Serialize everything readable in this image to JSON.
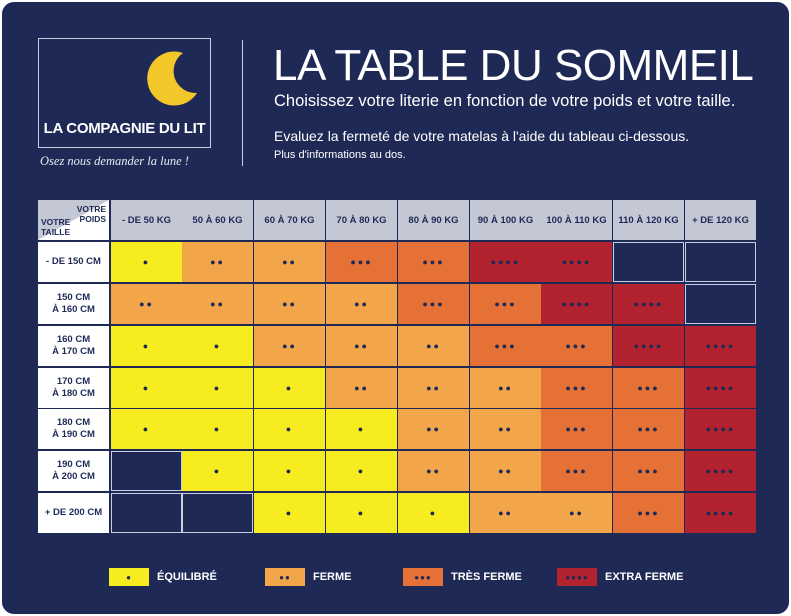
{
  "brand": {
    "name": "LA COMPAGNIE DU LIT",
    "tagline": "Osez nous demander la lune !"
  },
  "header": {
    "title": "LA TABLE DU SOMMEIL",
    "subtitle": "Choisissez votre literie en fonction de votre poids et votre taille.",
    "instruction": "Evaluez la fermeté de votre matelas à l'aide du tableau ci-dessous.",
    "more_info": "Plus d'informations au dos."
  },
  "grid": {
    "corner_weight": "VOTRE\nPOIDS",
    "corner_height": "VOTRE\nTAILLE",
    "columns": [
      "- DE 50 KG",
      "50 À 60 KG",
      "60 À 70 KG",
      "70 À 80 KG",
      "80 À 90 KG",
      "90 À 100 KG",
      "100 À 110 KG",
      "110 À 120 KG",
      "+ DE 120 KG"
    ],
    "rows": [
      {
        "label": "- DE 150 CM",
        "levels": [
          1,
          2,
          2,
          3,
          3,
          4,
          4,
          0,
          0
        ]
      },
      {
        "label": "150 CM\nÀ 160 CM",
        "levels": [
          2,
          2,
          2,
          2,
          3,
          3,
          4,
          4,
          0
        ]
      },
      {
        "label": "160 CM\nÀ 170 CM",
        "levels": [
          1,
          1,
          2,
          2,
          2,
          3,
          3,
          4,
          4
        ]
      },
      {
        "label": "170 CM\nÀ 180 CM",
        "levels": [
          1,
          1,
          1,
          2,
          2,
          2,
          3,
          3,
          4
        ]
      },
      {
        "label": "180 CM\nÀ 190 CM",
        "levels": [
          1,
          1,
          1,
          1,
          2,
          2,
          3,
          3,
          4
        ]
      },
      {
        "label": "190 CM\nÀ 200 CM",
        "levels": [
          0,
          1,
          1,
          1,
          2,
          2,
          3,
          3,
          4
        ]
      },
      {
        "label": "+ DE 200 CM",
        "levels": [
          0,
          0,
          1,
          1,
          1,
          2,
          2,
          3,
          4
        ]
      }
    ]
  },
  "legend": [
    {
      "level": 1,
      "label": "ÉQUILIBRÉ"
    },
    {
      "level": 2,
      "label": "FERME"
    },
    {
      "level": 3,
      "label": "TRÈS FERME"
    },
    {
      "level": 4,
      "label": "EXTRA FERME"
    }
  ],
  "colors": {
    "background": "#1e2a55",
    "empty": "#1e2a55",
    "level_1": "#f7ec1f",
    "level_2": "#f3a54a",
    "level_3": "#e67137",
    "level_4": "#b3232f",
    "header": "#c4c7d4",
    "moon": "#f3c62a"
  }
}
